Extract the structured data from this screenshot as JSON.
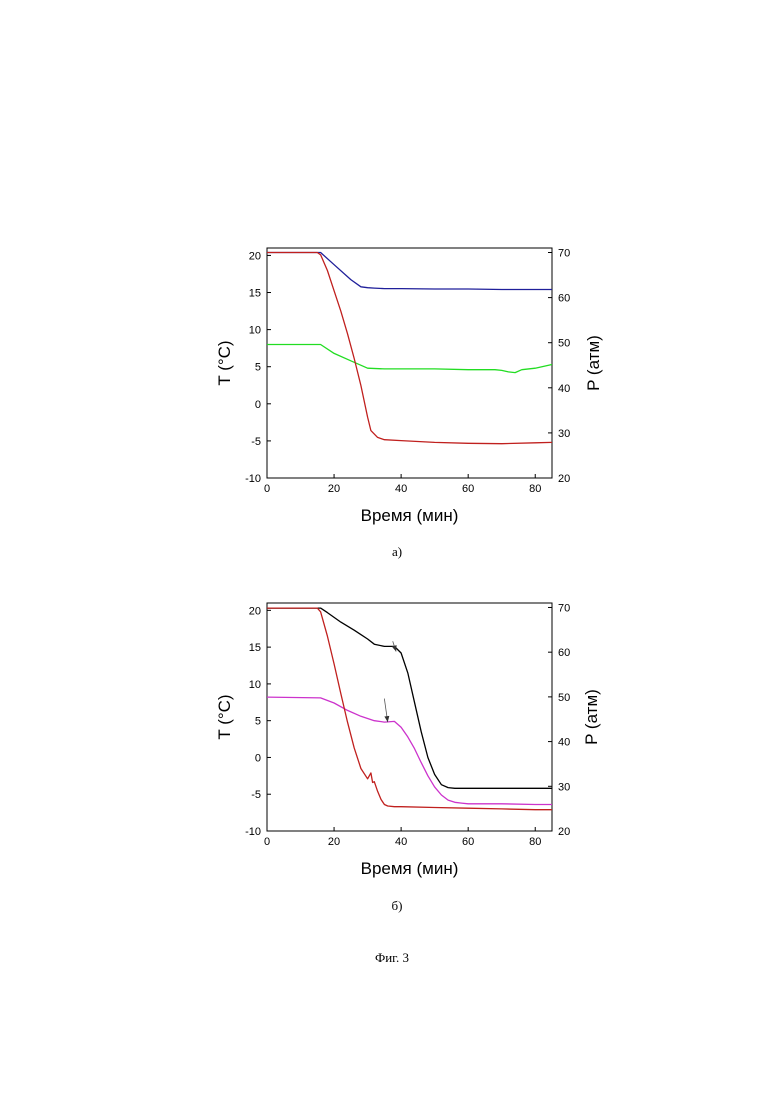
{
  "figure_caption": "Фиг. 3",
  "chart_data": [
    {
      "type": "line",
      "panel_label": "а)",
      "xlabel": "Время (мин)",
      "ylabel_left": "T (°C)",
      "ylabel_right": "P (атм)",
      "xlim": [
        0,
        85
      ],
      "ylim_left": [
        -10,
        21
      ],
      "ylim_right": [
        20,
        71
      ],
      "xticks": [
        0,
        20,
        40,
        60,
        80
      ],
      "yticks_left": [
        -10,
        -5,
        0,
        5,
        10,
        15,
        20
      ],
      "yticks_right": [
        20,
        30,
        40,
        50,
        60,
        70
      ],
      "grid": false,
      "series": [
        {
          "color": "#1f1f9a",
          "axis": "right",
          "x": [
            0,
            16,
            20,
            25,
            28,
            30,
            32,
            35,
            40,
            50,
            60,
            70,
            80,
            85
          ],
          "values": [
            70,
            70,
            67.3,
            64,
            62.4,
            62.2,
            62.1,
            62,
            62,
            61.9,
            61.9,
            61.8,
            61.8,
            61.8
          ]
        },
        {
          "color": "#22dd22",
          "axis": "left",
          "x": [
            0,
            16,
            20,
            25,
            30,
            35,
            40,
            50,
            60,
            68,
            70,
            72,
            74,
            76,
            80,
            85
          ],
          "values": [
            8,
            8,
            6.8,
            5.8,
            4.8,
            4.7,
            4.7,
            4.7,
            4.6,
            4.6,
            4.5,
            4.3,
            4.2,
            4.6,
            4.8,
            5.3
          ]
        },
        {
          "color": "#c0201e",
          "axis": "right",
          "x": [
            0,
            15,
            16,
            18,
            20,
            22,
            24,
            26,
            28,
            30,
            31,
            33,
            35,
            40,
            50,
            60,
            70,
            80,
            85
          ],
          "values": [
            70,
            70,
            69.5,
            66,
            61.5,
            57,
            52,
            46.5,
            40.5,
            33.5,
            30.5,
            29,
            28.5,
            28.3,
            27.9,
            27.7,
            27.6,
            27.8,
            27.9
          ]
        }
      ]
    },
    {
      "type": "line",
      "panel_label": "б)",
      "xlabel": "Время (мин)",
      "ylabel_left": "T (°C)",
      "ylabel_right": "P (атм)",
      "xlim": [
        0,
        85
      ],
      "ylim_left": [
        -10,
        21
      ],
      "ylim_right": [
        20,
        71
      ],
      "xticks": [
        0,
        20,
        40,
        60,
        80
      ],
      "yticks_left": [
        -10,
        -5,
        0,
        5,
        10,
        15,
        20
      ],
      "yticks_right": [
        20,
        30,
        40,
        50,
        60,
        70
      ],
      "grid": false,
      "series": [
        {
          "color": "#000000",
          "axis": "left",
          "x": [
            0,
            16,
            18,
            22,
            26,
            30,
            32,
            35,
            38,
            40,
            42,
            44,
            46,
            48,
            50,
            52,
            54,
            56,
            60,
            70,
            80,
            85
          ],
          "values": [
            20.3,
            20.3,
            19.7,
            18.4,
            17.3,
            16.1,
            15.4,
            15.1,
            15.1,
            14.2,
            11.5,
            7.5,
            3.5,
            0,
            -2.3,
            -3.7,
            -4.1,
            -4.2,
            -4.2,
            -4.2,
            -4.2,
            -4.2
          ]
        },
        {
          "color": "#cc33cc",
          "axis": "left",
          "x": [
            0,
            16,
            20,
            24,
            28,
            32,
            35,
            38,
            40,
            42,
            44,
            46,
            48,
            50,
            52,
            54,
            56,
            58,
            60,
            70,
            80,
            85
          ],
          "values": [
            8.2,
            8.1,
            7.4,
            6.4,
            5.6,
            5.0,
            4.8,
            4.9,
            4.1,
            2.8,
            1.2,
            -0.7,
            -2.5,
            -4,
            -5.1,
            -5.8,
            -6.1,
            -6.2,
            -6.3,
            -6.3,
            -6.4,
            -6.4
          ]
        },
        {
          "color": "#c0201e",
          "axis": "left",
          "x": [
            0,
            15,
            16,
            18,
            20,
            22,
            24,
            26,
            28,
            30,
            31,
            31.5,
            32,
            33,
            34,
            35,
            36,
            38,
            40,
            50,
            60,
            70,
            80,
            85
          ],
          "values": [
            20.3,
            20.3,
            19.8,
            16.5,
            12.7,
            8.7,
            4.8,
            1.3,
            -1.5,
            -2.9,
            -2.1,
            -3.4,
            -3.3,
            -4.6,
            -5.7,
            -6.4,
            -6.6,
            -6.7,
            -6.7,
            -6.8,
            -6.9,
            -7.0,
            -7.1,
            -7.1
          ]
        }
      ],
      "annotations": [
        {
          "type": "arrow",
          "from": [
            37.5,
            15.8
          ],
          "to": [
            38.5,
            14.4
          ]
        },
        {
          "type": "arrow",
          "from": [
            35,
            8.0
          ],
          "to": [
            36,
            4.8
          ]
        }
      ]
    }
  ]
}
